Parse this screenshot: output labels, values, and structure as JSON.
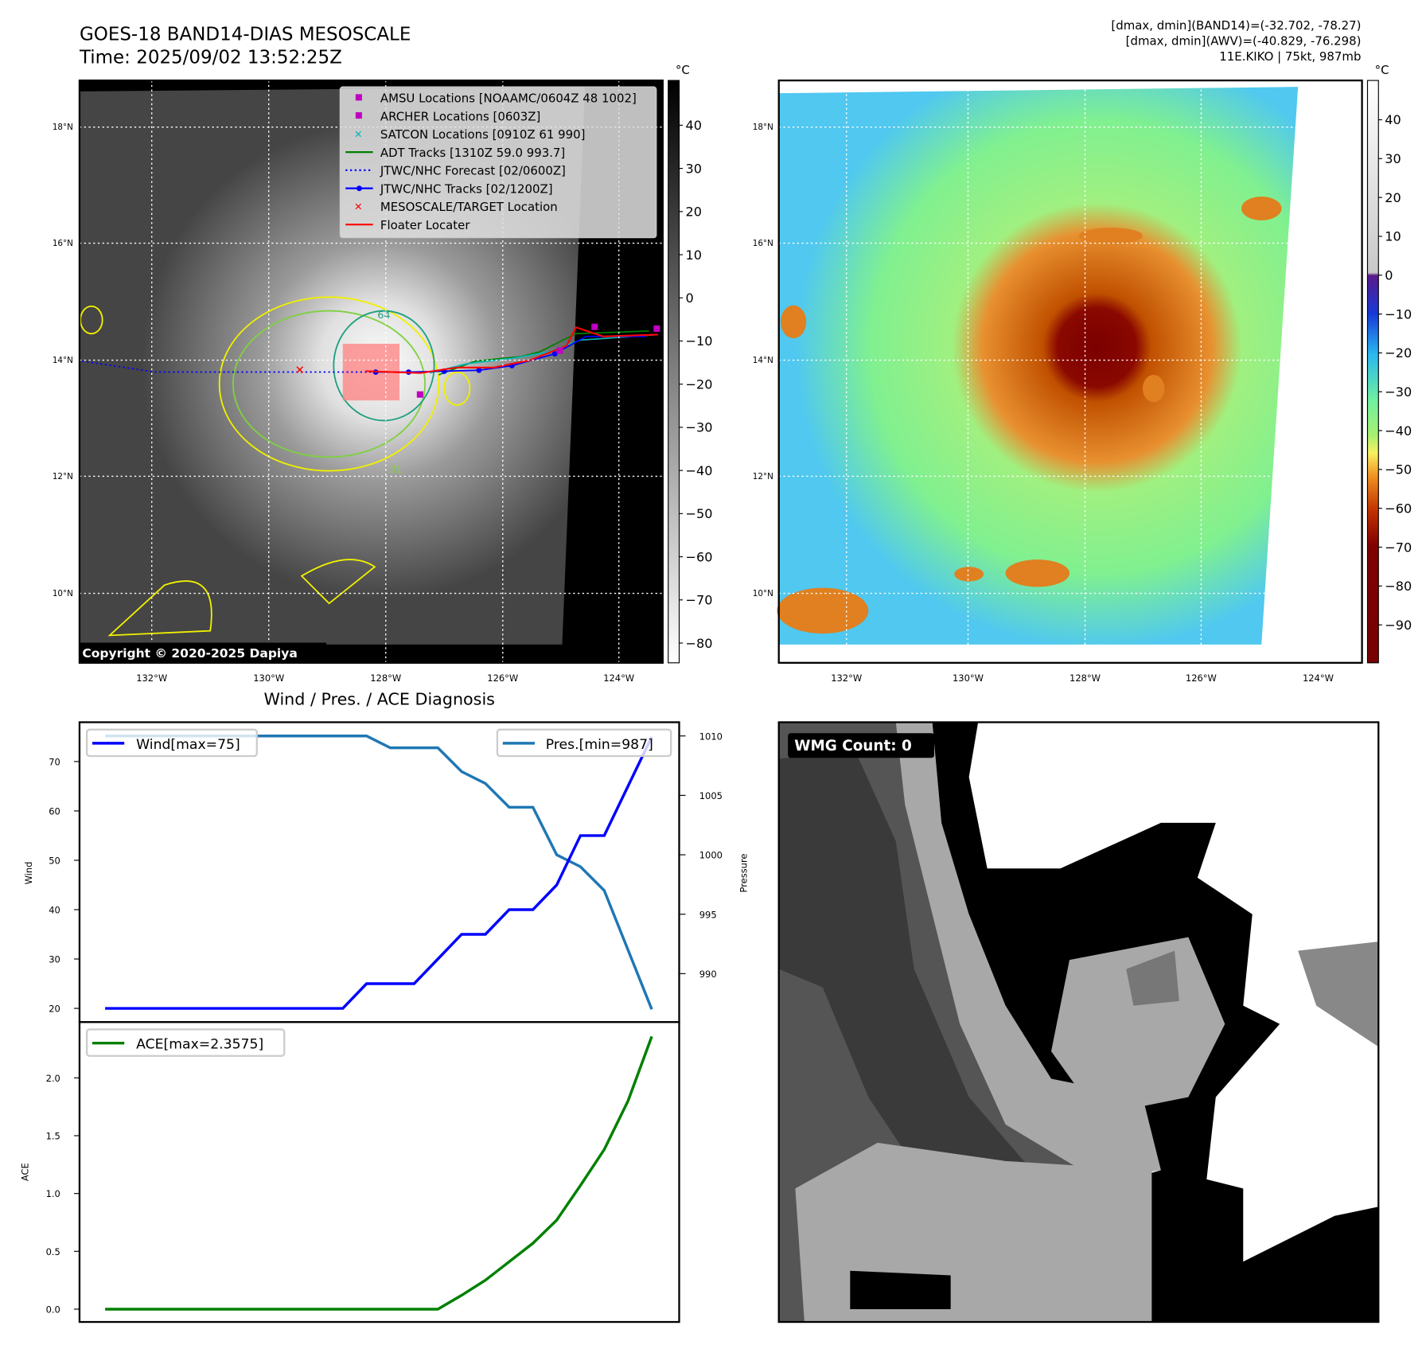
{
  "header": {
    "title": "GOES-18 BAND14-DIAS MESOSCALE",
    "time": "Time: 2025/09/02 13:52:25Z",
    "info_line1": "[dmax, dmin](BAND14)=(-32.702, -78.27)",
    "info_line2": "[dmax, dmin](AWV)=(-40.829, -76.298)",
    "info_line3": "11E.KIKO | 75kt, 987mb"
  },
  "maps": {
    "lat_labels": [
      "18°N",
      "16°N",
      "14°N",
      "12°N",
      "10°N"
    ],
    "lon_labels": [
      "132°W",
      "130°W",
      "128°W",
      "126°W",
      "124°W"
    ],
    "colorbar_unit": "°C",
    "left_colorbar_ticks": [
      "40",
      "30",
      "20",
      "10",
      "0",
      "−10",
      "−20",
      "−30",
      "−40",
      "−50",
      "−60",
      "−70",
      "−80"
    ],
    "right_colorbar_ticks": [
      "40",
      "30",
      "20",
      "10",
      "0",
      "−10",
      "−20",
      "−30",
      "−40",
      "−50",
      "−60",
      "−70",
      "−80",
      "−90"
    ],
    "copyright": "Copyright © 2020-2025 Dapiya",
    "contour_labels": [
      "64",
      "31"
    ],
    "legend": [
      {
        "label": "AMSU Locations [NOAAMC/0604Z 48 1002]",
        "marker": "square",
        "color": "#c000c0"
      },
      {
        "label": "ARCHER Locations [0603Z]",
        "marker": "square",
        "color": "#c000c0"
      },
      {
        "label": "SATCON Locations [0910Z 61 990]",
        "marker": "x",
        "color": "#00b8b8"
      },
      {
        "label": "ADT Tracks [1310Z 59.0 993.7]",
        "marker": "line",
        "color": "#008000"
      },
      {
        "label": "JTWC/NHC Forecast [02/0600Z]",
        "marker": "dotted",
        "color": "#0000ff"
      },
      {
        "label": "JTWC/NHC Tracks [02/1200Z]",
        "marker": "line-dot",
        "color": "#0000ff"
      },
      {
        "label": "MESOSCALE/TARGET Location",
        "marker": "x",
        "color": "#ff0000"
      },
      {
        "label": "Floater Locater",
        "marker": "line",
        "color": "#ff0000"
      }
    ]
  },
  "wmg": {
    "label": "WMG Count: 0"
  },
  "chart_data": [
    {
      "type": "line",
      "title": "Wind / Pres. / ACE Diagnosis",
      "ylabel": "Wind",
      "y2label": "Pressure",
      "ylim": [
        18,
        78
      ],
      "y2lim": [
        986.5,
        1010.9
      ],
      "yticks": [
        "20",
        "30",
        "40",
        "50",
        "60",
        "70"
      ],
      "y2ticks": [
        "990",
        "995",
        "1000",
        "1005",
        "1010"
      ],
      "legend_placement": [
        "upper-left",
        "upper-right"
      ],
      "series": [
        {
          "name": "Wind[max=75]",
          "color": "#0000ff",
          "axis": "left",
          "values": [
            20,
            20,
            20,
            20,
            20,
            20,
            20,
            20,
            20,
            20,
            20,
            25,
            25,
            25,
            30,
            35,
            35,
            40,
            40,
            45,
            55,
            55,
            65,
            75
          ]
        },
        {
          "name": "Pres.[min=987]",
          "color": "#1f77b4",
          "axis": "right",
          "values": [
            1010,
            1010,
            1010,
            1010,
            1010,
            1010,
            1010,
            1010,
            1010,
            1010,
            1010,
            1010,
            1009,
            1009,
            1009,
            1007,
            1006,
            1004,
            1004,
            1000,
            999,
            997,
            992,
            987
          ]
        }
      ]
    },
    {
      "type": "line",
      "title": "",
      "ylabel": "ACE",
      "ylim": [
        -0.1,
        2.48
      ],
      "yticks": [
        "0.0",
        "0.5",
        "1.0",
        "1.5",
        "2.0"
      ],
      "legend_placement": "upper-left",
      "series": [
        {
          "name": "ACE[max=2.3575]",
          "color": "#008000",
          "values": [
            0,
            0,
            0,
            0,
            0,
            0,
            0,
            0,
            0,
            0,
            0,
            0,
            0,
            0,
            0,
            0.12,
            0.25,
            0.41,
            0.57,
            0.77,
            1.07,
            1.38,
            1.8,
            2.3575
          ]
        }
      ]
    }
  ]
}
